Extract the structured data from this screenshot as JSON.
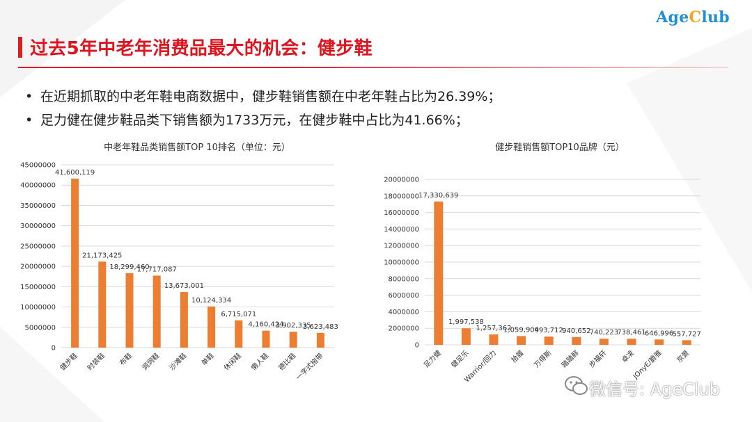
{
  "logo": {
    "part1": "Age",
    "part2": "C",
    "part3": "lub"
  },
  "page_title": "过去5年中老年消费品最大的机会：健步鞋",
  "bullets": [
    "在近期抓取的中老年鞋电商数据中，健步鞋销售额在中老年鞋占比为26.39%；",
    "足力健在健步鞋品类下销售额为1733万元，在健步鞋中占比为41.66%；"
  ],
  "bullet_symbol": "•",
  "watermark": "微信号: AgeClub",
  "colors": {
    "bar": "#ed7d31",
    "title": "#e0141e",
    "grid": "#d9d9d9"
  },
  "chart_data": [
    {
      "type": "bar",
      "title": "中老年鞋品类销售额TOP 10排名（单位：元）",
      "categories": [
        "健步鞋",
        "时装鞋",
        "布鞋",
        "洞洞鞋",
        "沙滩鞋",
        "单鞋",
        "休闲鞋",
        "懒人鞋",
        "德比鞋",
        "一字式拖带"
      ],
      "values": [
        41600119,
        21173425,
        18299460,
        17717087,
        13673001,
        10124334,
        6715071,
        4160424,
        3902335,
        3623483
      ],
      "value_labels": [
        "41,600,119",
        "21,173,425",
        "18,299,460",
        "17,717,087",
        "13,673,001",
        "10,124,334",
        "6,715,071",
        "4,160,424",
        "3,902,335",
        "3,623,483"
      ],
      "ylim": [
        0,
        45000000
      ],
      "yticks": [
        0,
        5000000,
        10000000,
        15000000,
        20000000,
        25000000,
        30000000,
        35000000,
        40000000,
        45000000
      ],
      "grid": true
    },
    {
      "type": "bar",
      "title": "健步鞋销售额TOP10品牌（元）",
      "categories": [
        "足力健",
        "健足乐",
        "Warrior/回力",
        "拾履",
        "万得斯",
        "踏踏鲜",
        "步福轩",
        "卓凌",
        "JOnyE/爵雅",
        "京景"
      ],
      "values": [
        17330639,
        1997538,
        1257362,
        1059904,
        993712,
        940652,
        740223,
        738461,
        646996,
        557727
      ],
      "value_labels": [
        "17,330,639",
        "1,997,538",
        "1,257,362",
        "1,059,904",
        "993,712",
        "940,652",
        "740,223",
        "738,461",
        "646,996",
        "557,727"
      ],
      "ylim": [
        0,
        20000000
      ],
      "yticks": [
        0,
        2000000,
        4000000,
        6000000,
        8000000,
        10000000,
        12000000,
        14000000,
        16000000,
        18000000,
        20000000
      ],
      "grid": true
    }
  ]
}
